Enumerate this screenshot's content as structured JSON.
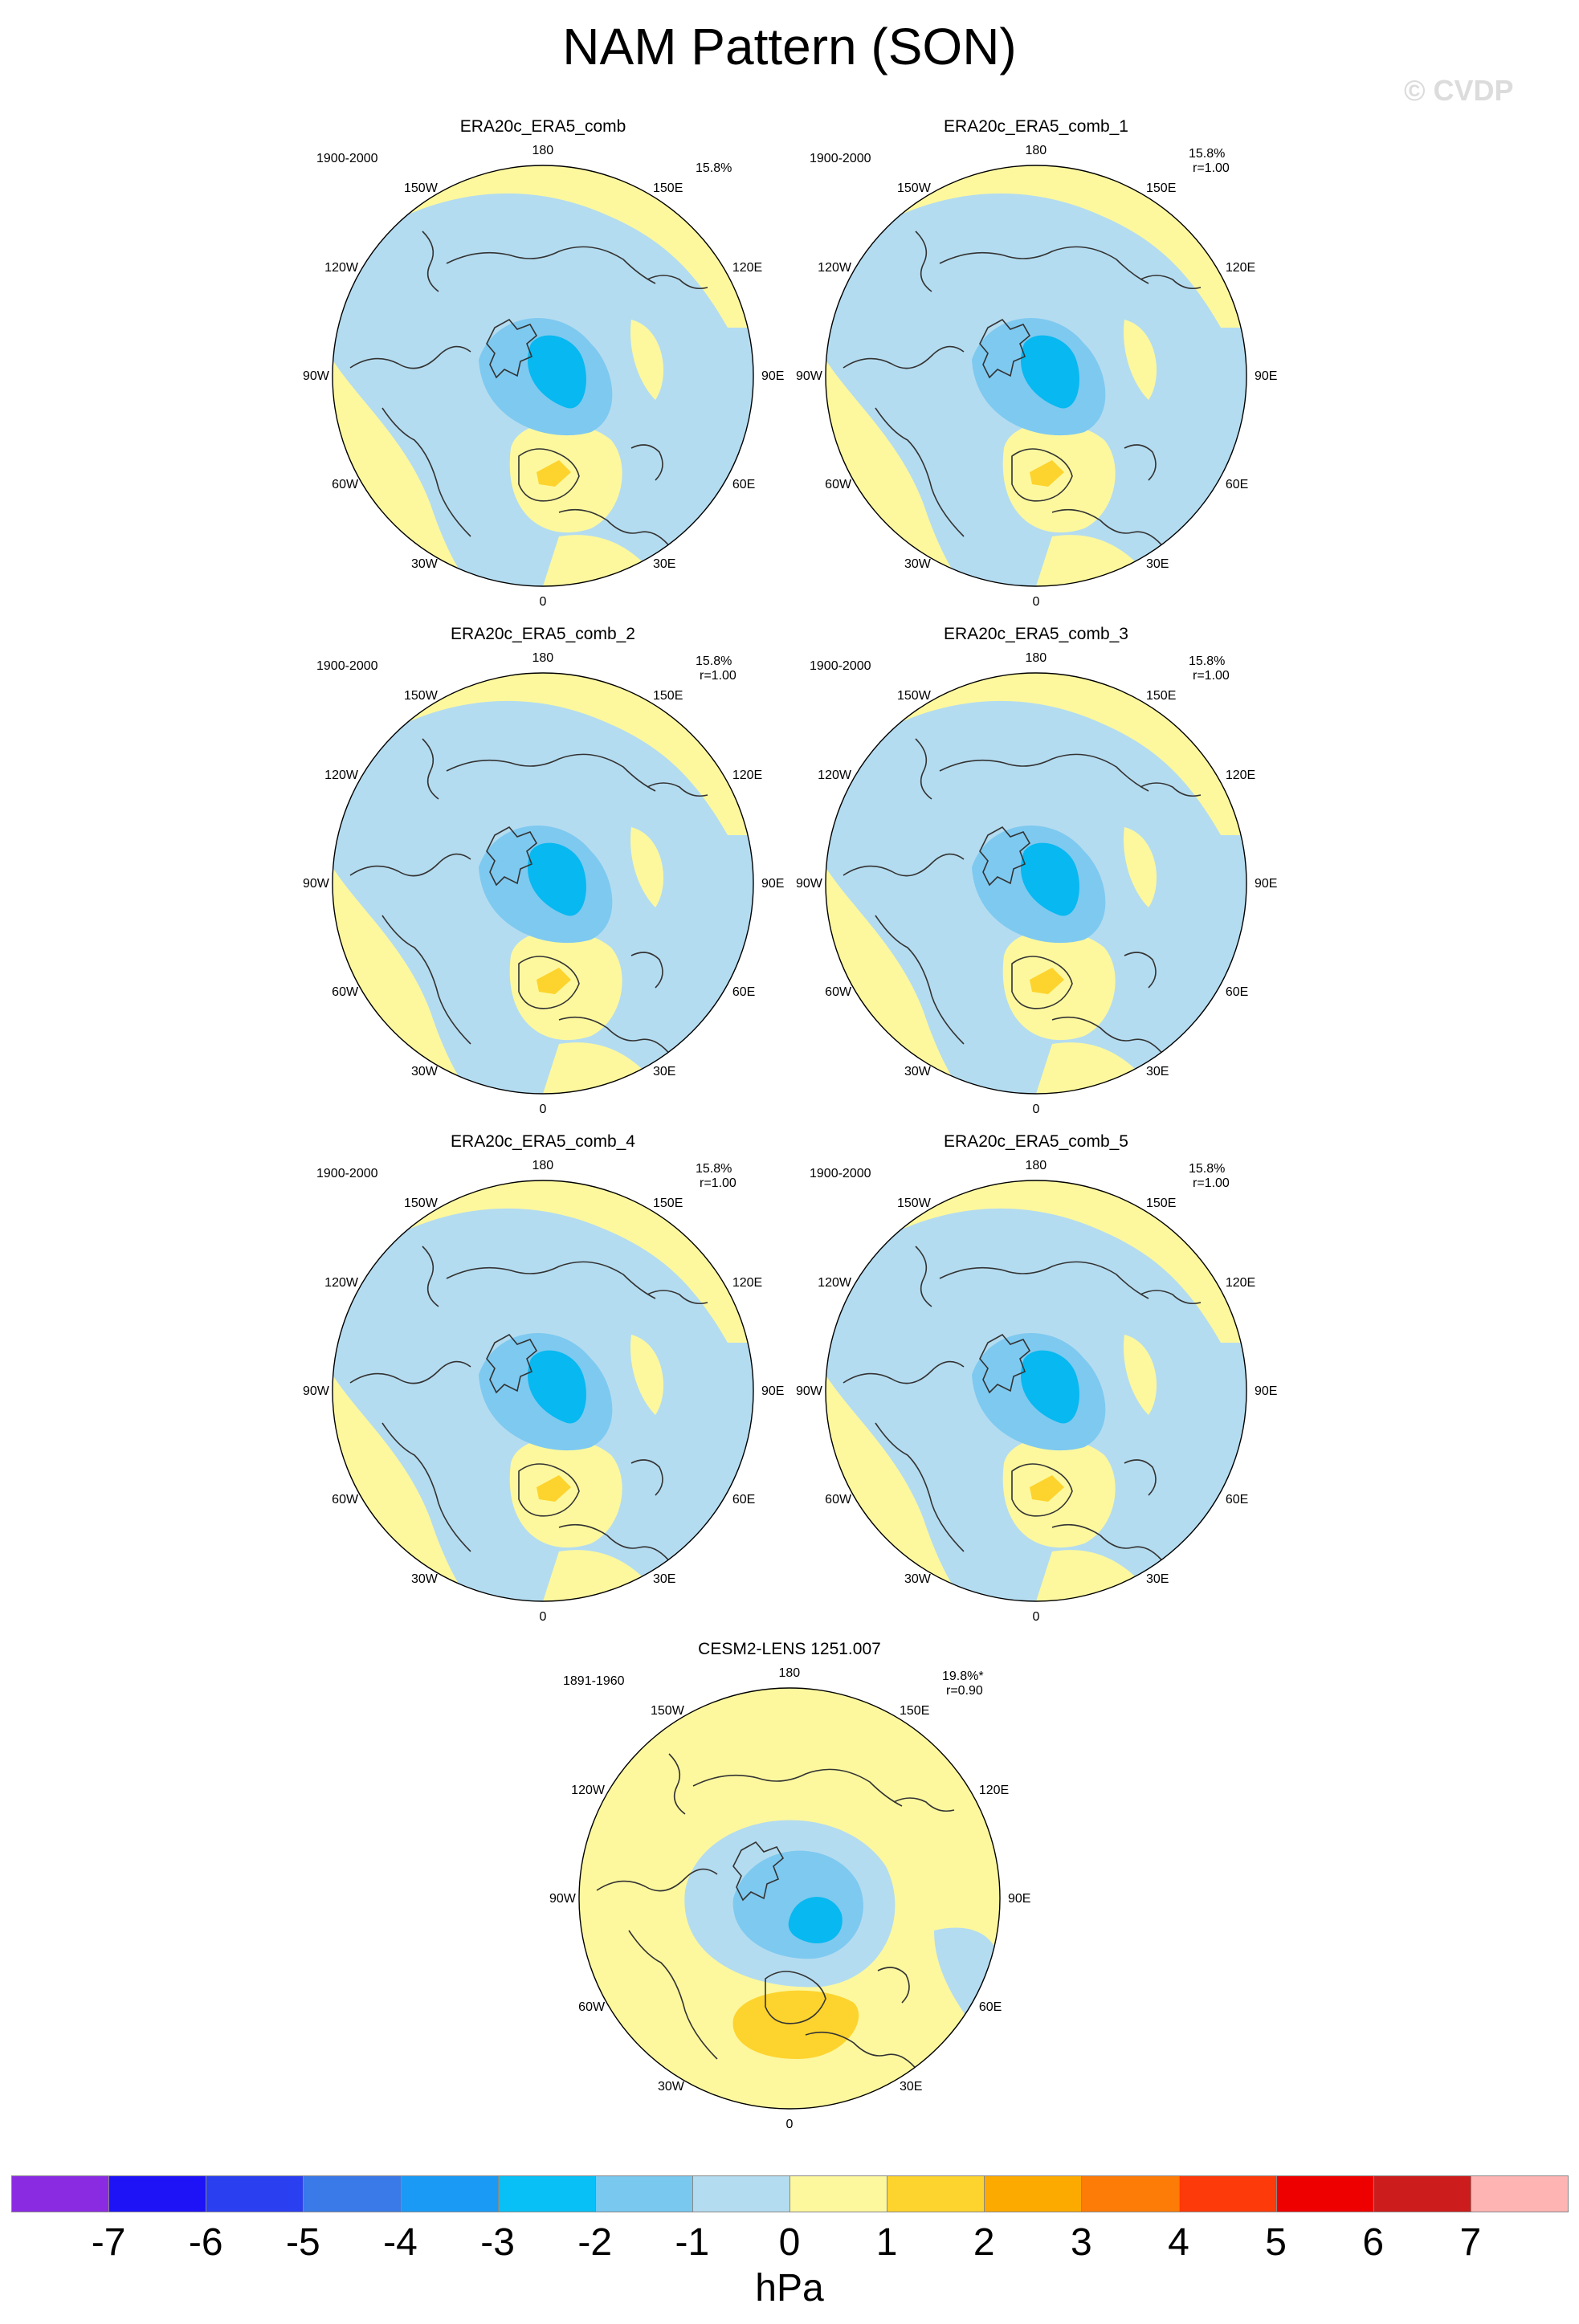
{
  "title": "NAM Pattern (SON)",
  "copyright": "© CVDP",
  "colors": {
    "neg1": "#b4dcf0",
    "neg2": "#7ec9f0",
    "neg3": "#08b8f0",
    "pos1": "#fdf89e",
    "pos2": "#fdd32d",
    "coast": "#333333"
  },
  "longitude_labels": [
    "180",
    "150E",
    "120E",
    "90E",
    "60E",
    "30E",
    "0",
    "30W",
    "60W",
    "90W",
    "120W",
    "150W"
  ],
  "panels": [
    {
      "title": "ERA20c_ERA5_comb",
      "period": "1900-2000",
      "variance": "15.8%",
      "corr": ""
    },
    {
      "title": "ERA20c_ERA5_comb_1",
      "period": "1900-2000",
      "variance": "15.8%",
      "corr": "r=1.00"
    },
    {
      "title": "ERA20c_ERA5_comb_2",
      "period": "1900-2000",
      "variance": "15.8%",
      "corr": "r=1.00"
    },
    {
      "title": "ERA20c_ERA5_comb_3",
      "period": "1900-2000",
      "variance": "15.8%",
      "corr": "r=1.00"
    },
    {
      "title": "ERA20c_ERA5_comb_4",
      "period": "1900-2000",
      "variance": "15.8%",
      "corr": "r=1.00"
    },
    {
      "title": "ERA20c_ERA5_comb_5",
      "period": "1900-2000",
      "variance": "15.8%",
      "corr": "r=1.00"
    },
    {
      "title": "CESM2-LENS 1251.007",
      "period": "1891-1960",
      "variance": "19.8%*",
      "corr": "r=0.90"
    }
  ],
  "colorbar": {
    "colors": [
      "#8a2be2",
      "#1e12f7",
      "#2a3ff0",
      "#3a7ae8",
      "#1a9af5",
      "#08c0f5",
      "#78c8f0",
      "#b4dcf0",
      "#fdf89e",
      "#fdd32d",
      "#fdaa00",
      "#fd7c08",
      "#fd3a0a",
      "#ee0000",
      "#cc1c1c",
      "#ffb4b4"
    ],
    "ticks": [
      "-7",
      "-6",
      "-5",
      "-4",
      "-3",
      "-2",
      "-1",
      "0",
      "1",
      "2",
      "3",
      "4",
      "5",
      "6",
      "7"
    ],
    "units": "hPa"
  }
}
